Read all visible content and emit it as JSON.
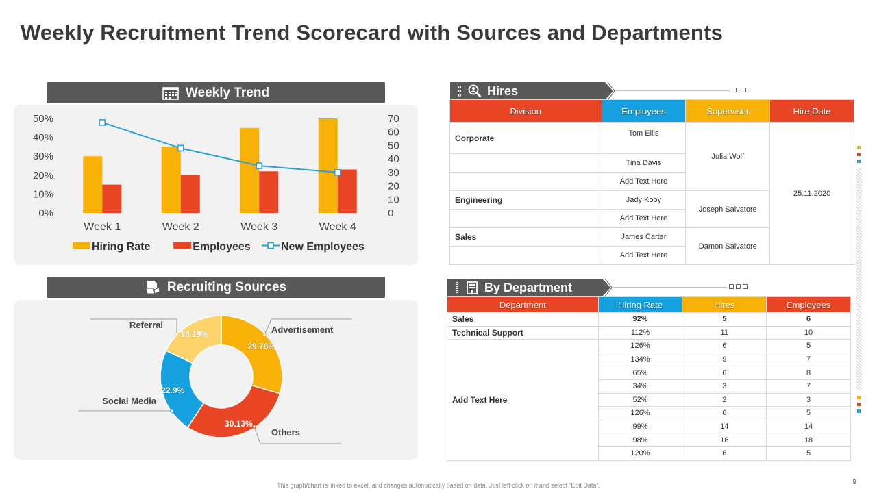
{
  "title": "Weekly Recruitment Trend Scorecard with Sources and Departments",
  "weekly_trend": {
    "header": "Weekly Trend",
    "icon": "calendar-icon"
  },
  "recruiting_sources": {
    "header": "Recruiting Sources",
    "icon": "document-icon"
  },
  "hires": {
    "header": "Hires",
    "icon": "search-user-icon",
    "columns": [
      "Division",
      "Employees",
      "Supervisor",
      "Hire Date"
    ],
    "column_colors": [
      "#e84525",
      "#15a1e0",
      "#f8b207",
      "#e84525"
    ],
    "rows": [
      {
        "division": "Corporate",
        "employee": "Tom Ellis"
      },
      {
        "division": "",
        "employee": "Tina Davis"
      },
      {
        "division": "",
        "employee": "Add Text Here"
      },
      {
        "division": "Engineering",
        "employee": "Jady Koby"
      },
      {
        "division": "",
        "employee": "Add Text Here"
      },
      {
        "division": "Sales",
        "employee": "James Carter"
      },
      {
        "division": "",
        "employee": "Add Text Here"
      }
    ],
    "supervisors": [
      "Julia Wolf",
      "Joseph Salvatore",
      "Damon Salvatore"
    ],
    "hire_date": "25.11.2020"
  },
  "by_department": {
    "header": "By Department",
    "icon": "building-icon",
    "columns": [
      "Department",
      "Hiring Rate",
      "Hires",
      "Employees"
    ],
    "column_colors": [
      "#e84525",
      "#15a1e0",
      "#f8b207",
      "#e84525"
    ],
    "named_rows": [
      {
        "department": "Sales",
        "rate": "92%",
        "hires": "5",
        "employees": "6"
      },
      {
        "department": "Technical Support",
        "rate": "112%",
        "hires": "11",
        "employees": "10"
      }
    ],
    "group_label": "Add Text Here",
    "group_rows": [
      {
        "rate": "126%",
        "hires": "6",
        "employees": "5"
      },
      {
        "rate": "134%",
        "hires": "9",
        "employees": "7"
      },
      {
        "rate": "65%",
        "hires": "6",
        "employees": "8"
      },
      {
        "rate": "34%",
        "hires": "3",
        "employees": "7"
      },
      {
        "rate": "52%",
        "hires": "2",
        "employees": "3"
      },
      {
        "rate": "126%",
        "hires": "6",
        "employees": "5"
      },
      {
        "rate": "99%",
        "hires": "14",
        "employees": "14"
      },
      {
        "rate": "98%",
        "hires": "16",
        "employees": "18"
      },
      {
        "rate": "120%",
        "hires": "6",
        "employees": "5"
      }
    ]
  },
  "footer": "This graph/chart is linked to excel, and changes automatically based on data. Just left click on it and select “Edit Data”.",
  "page_number": "9",
  "chart_data": [
    {
      "type": "bar",
      "title": "Weekly Trend",
      "categories": [
        "Week 1",
        "Week 2",
        "Week 3",
        "Week 4"
      ],
      "series": [
        {
          "name": "Hiring Rate",
          "kind": "bar",
          "axis": "left",
          "color": "#f8b207",
          "values": [
            30,
            35,
            45,
            50
          ]
        },
        {
          "name": "Employees",
          "kind": "bar",
          "axis": "left",
          "color": "#e84525",
          "values": [
            15,
            20,
            22,
            23
          ]
        },
        {
          "name": "New Employees",
          "kind": "line",
          "axis": "right",
          "color": "#2aa0d8",
          "values": [
            67,
            48,
            35,
            30
          ]
        }
      ],
      "left_axis": {
        "ticks": [
          "0%",
          "10%",
          "20%",
          "30%",
          "40%",
          "50%"
        ],
        "range": [
          0,
          50
        ]
      },
      "right_axis": {
        "ticks": [
          "0",
          "10",
          "20",
          "30",
          "40",
          "50",
          "60",
          "70"
        ],
        "range": [
          0,
          70
        ]
      },
      "legend": "bottom"
    },
    {
      "type": "pie",
      "title": "Recruiting Sources",
      "labels": [
        "Advertisement",
        "Others",
        "Social Media",
        "Referral"
      ],
      "values": [
        29.76,
        30.13,
        22.9,
        18.19
      ],
      "value_labels": [
        "29.76%",
        "30.13%",
        "22.9%",
        "18.19%"
      ],
      "colors": [
        "#f8b207",
        "#e84525",
        "#15a1e0",
        "#fdd36b"
      ]
    }
  ]
}
